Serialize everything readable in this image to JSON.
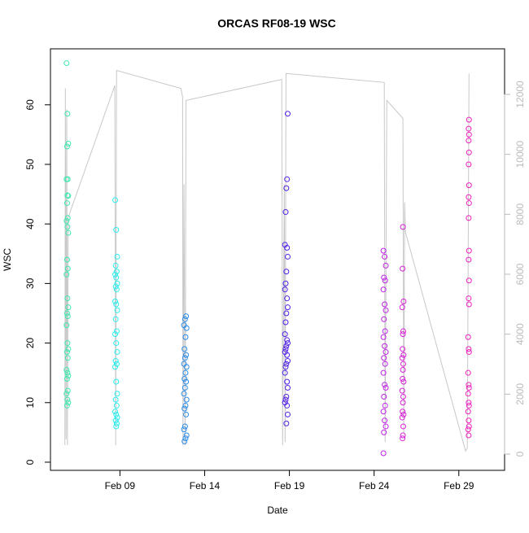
{
  "chart_data": {
    "type": "scatter",
    "title": "ORCAS RF08-19 WSC",
    "xlabel": "Date",
    "ylabel": "WSC",
    "xlim": [
      4.9,
      31.7
    ],
    "xticks": [
      {
        "value": 9,
        "label": "Feb 09"
      },
      {
        "value": 14,
        "label": "Feb 14"
      },
      {
        "value": 19,
        "label": "Feb 19"
      },
      {
        "value": 24,
        "label": "Feb 24"
      },
      {
        "value": 29,
        "label": "Feb 29"
      }
    ],
    "ylim": [
      -1.37,
      69.4
    ],
    "yticks": [
      0,
      10,
      20,
      30,
      40,
      50,
      60
    ],
    "y2lim": [
      -543,
      13521
    ],
    "y2ticks": [
      0,
      2000,
      4000,
      6000,
      8000,
      10000,
      12000
    ],
    "y2color": "#bbbbbb",
    "series": [
      {
        "type": "line",
        "axis": "y2",
        "color": "#c8c8c8",
        "x": [
          5.75,
          5.78,
          5.82,
          5.86,
          5.9,
          5.95,
          8.7,
          8.75,
          8.8,
          12.6,
          12.7,
          12.72,
          12.78,
          12.85,
          12.9,
          18.55,
          18.6,
          18.7,
          18.75,
          18.8,
          24.6,
          24.65,
          24.75,
          25.7,
          25.75,
          25.8,
          25.85,
          29.4,
          29.5,
          29.6
        ],
        "values": [
          300,
          12200,
          500,
          11500,
          300,
          7900,
          12300,
          300,
          12800,
          12200,
          11900,
          300,
          9000,
          300,
          11800,
          12500,
          300,
          9000,
          400,
          12700,
          12400,
          400,
          11800,
          11200,
          700,
          8400,
          7400,
          100,
          200,
          12700
        ]
      },
      {
        "type": "scatter",
        "color": "#3de8b0",
        "x": [
          5.85,
          5.9,
          5.95,
          5.88,
          5.92,
          5.85,
          5.9,
          5.95,
          5.88,
          5.92,
          5.85,
          5.9,
          5.95,
          5.88,
          5.92,
          5.85,
          5.9,
          5.95,
          5.88,
          5.92,
          5.85,
          5.9,
          5.95,
          5.88,
          5.92,
          5.85,
          5.9,
          5.95,
          5.88,
          5.92,
          5.85,
          5.9,
          5.95,
          5.88
        ],
        "values": [
          67,
          58.5,
          53.5,
          53,
          47.5,
          47.5,
          44.8,
          44.7,
          43.5,
          41,
          40.5,
          39.5,
          38.5,
          34,
          32.5,
          31.5,
          27.5,
          26,
          25,
          24.5,
          23,
          20,
          19,
          18.5,
          17.5,
          15.5,
          15,
          14.5,
          14,
          12,
          11.5,
          10.5,
          10,
          9.5
        ]
      },
      {
        "type": "scatter",
        "color": "#28eeee",
        "x": [
          8.72,
          8.78,
          8.84,
          8.75,
          8.81,
          8.72,
          8.78,
          8.84,
          8.75,
          8.81,
          8.72,
          8.78,
          8.84,
          8.75,
          8.81,
          8.72,
          8.78,
          8.84,
          8.75,
          8.81,
          8.72,
          8.78,
          8.84,
          8.75,
          8.81,
          8.72,
          8.78,
          8.84,
          8.75,
          8.81,
          8.78
        ],
        "values": [
          44,
          39,
          34.5,
          33,
          32,
          31.5,
          31,
          30,
          29.5,
          29,
          27,
          26.5,
          25.5,
          24,
          22,
          21.5,
          20,
          18.5,
          17,
          16.5,
          16,
          13.5,
          11.5,
          10.5,
          9.5,
          8.5,
          8,
          7.5,
          7,
          6.5,
          6
        ]
      },
      {
        "type": "scatter",
        "color": "#2b8ce8",
        "x": [
          12.9,
          12.84,
          12.78,
          12.93,
          12.87,
          12.81,
          12.9,
          12.84,
          12.78,
          12.93,
          12.87,
          12.81,
          12.9,
          12.84,
          12.78,
          12.93,
          12.87,
          12.81,
          12.9,
          12.84,
          12.78,
          12.93,
          12.87,
          12.81
        ],
        "values": [
          24.5,
          24,
          23,
          22.5,
          21,
          19,
          18,
          17.5,
          16.5,
          16,
          15,
          14,
          13.5,
          12.5,
          11.5,
          10.5,
          9.5,
          9,
          8,
          6,
          5.5,
          4.5,
          4,
          3.5
        ]
      },
      {
        "type": "scatter",
        "color": "#5020e8",
        "x": [
          18.9,
          18.86,
          18.82,
          18.78,
          18.74,
          18.86,
          18.9,
          18.82,
          18.78,
          18.74,
          18.86,
          18.9,
          18.82,
          18.78,
          18.74,
          18.86,
          18.9,
          18.82,
          18.78,
          18.74,
          18.86,
          18.9,
          18.82,
          18.78,
          18.74,
          18.86,
          18.9,
          18.82,
          18.78,
          18.74,
          18.86,
          18.9,
          18.82
        ],
        "values": [
          58.5,
          47.5,
          46,
          42,
          36.5,
          36,
          34.5,
          32,
          30,
          29,
          27.5,
          26,
          25,
          23.5,
          21.5,
          20.5,
          20,
          19.5,
          19,
          18.5,
          18,
          17,
          16.5,
          16,
          15,
          13.5,
          12.5,
          11,
          10.5,
          10,
          9.5,
          8,
          6.5
        ]
      },
      {
        "type": "scatter",
        "color": "#c020e8",
        "x": [
          24.55,
          24.62,
          24.69,
          24.58,
          24.65,
          24.55,
          24.62,
          24.69,
          24.58,
          24.65,
          24.55,
          24.62,
          24.69,
          24.58,
          24.65,
          24.55,
          24.62,
          24.69,
          24.58,
          24.65,
          24.55,
          24.62,
          24.69,
          24.58,
          24.55
        ],
        "values": [
          35.5,
          34.5,
          33,
          31,
          30.5,
          29,
          26.5,
          25.5,
          24,
          22,
          21,
          19.5,
          18.5,
          17.5,
          16.5,
          15,
          13,
          12.5,
          11,
          9.5,
          8.5,
          7,
          6,
          5,
          1.5
        ]
      },
      {
        "type": "scatter",
        "color": "#d820d8",
        "x": [
          25.7,
          25.68,
          25.74,
          25.66,
          25.72,
          25.7,
          25.68,
          25.74,
          25.66,
          25.72,
          25.7,
          25.68,
          25.74,
          25.66,
          25.72,
          25.7,
          25.68,
          25.74,
          25.66,
          25.72,
          25.7,
          25.68
        ],
        "values": [
          39.5,
          32.5,
          27,
          26,
          22,
          21.5,
          19,
          18,
          17.5,
          16.5,
          15.5,
          14,
          13.5,
          12,
          11,
          10,
          8.5,
          8,
          7.5,
          6,
          4.5,
          4
        ]
      },
      {
        "type": "scatter",
        "color": "#f020c0",
        "x": [
          29.6,
          29.58,
          29.6,
          29.58,
          29.6,
          29.58,
          29.6,
          29.58,
          29.6,
          29.58,
          29.6,
          29.58,
          29.6,
          29.58,
          29.6,
          29.55,
          29.58,
          29.6,
          29.55,
          29.58,
          29.6,
          29.55,
          29.58,
          29.6,
          29.55,
          29.58,
          29.6,
          29.55,
          29.58
        ],
        "values": [
          57.5,
          56,
          55,
          54,
          52,
          50,
          46.5,
          44.5,
          43.5,
          41,
          35.5,
          34,
          30.5,
          27.5,
          26.5,
          21,
          19,
          18.5,
          15,
          13,
          12.5,
          11.5,
          10,
          9.5,
          8.5,
          7,
          6,
          5.5,
          4.5
        ]
      }
    ]
  }
}
